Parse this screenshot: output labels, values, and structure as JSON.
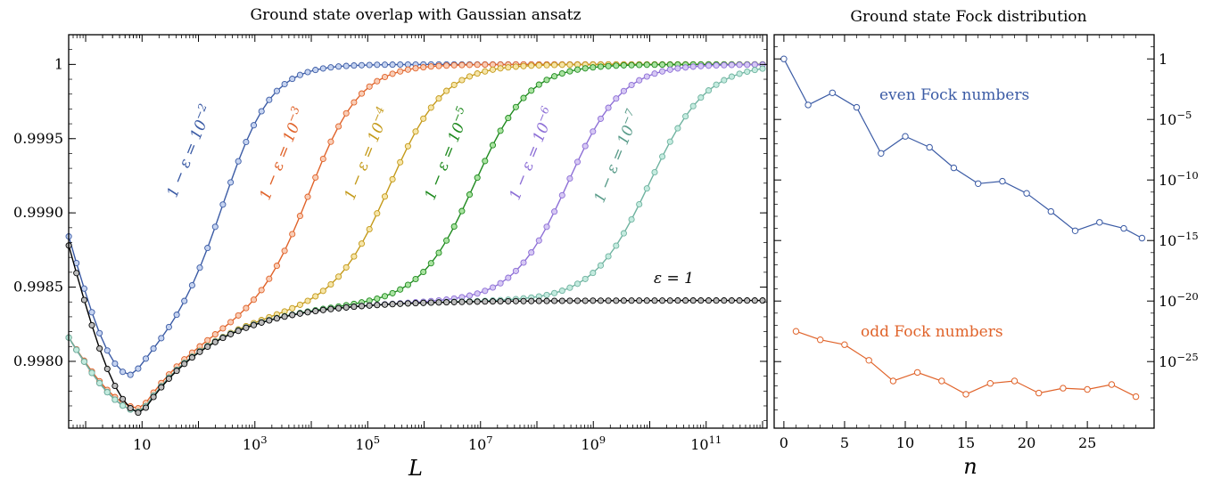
{
  "chart_data": [
    {
      "type": "line",
      "title": "Ground state overlap with Gaussian ansatz",
      "xlabel": "L",
      "ylabel": "",
      "x_scale": "log",
      "xlim": [
        0.5,
        1200000000000.0
      ],
      "ylim": [
        0.99755,
        1.0002
      ],
      "xtick_labels": [
        "10",
        "10^3",
        "10^5",
        "10^7",
        "10^9",
        "10^11"
      ],
      "ytick_labels": [
        "0.9980",
        "0.9985",
        "0.9990",
        "0.9995",
        "1"
      ],
      "ytick_values": [
        0.998,
        0.9985,
        0.999,
        0.9995,
        1.0
      ],
      "series": [
        {
          "name": "1 − ε = 10^−2",
          "color": "#3b5ba5",
          "fill": "#c5d3f0",
          "x0_exp": 0,
          "x1_exp": 4.3,
          "mid_exp": 2.5,
          "width": 0.42,
          "dip_y": 0.99787,
          "dip_exp": 0.85,
          "start_y": 0.99884
        },
        {
          "name": "1 − ε = 10^−3",
          "color": "#e0632a",
          "fill": "#f9cdb6",
          "x0_exp": 0.5,
          "x1_exp": 6.0,
          "mid_exp": 4.0,
          "width": 0.45,
          "dip_y": 0.99768,
          "dip_exp": 1.0,
          "start_y": 0.99816
        },
        {
          "name": "1 − ε = 10^−4",
          "color": "#c49a1a",
          "fill": "#f6e5a8",
          "x0_exp": 2.0,
          "x1_exp": 8.0,
          "mid_exp": 5.4,
          "width": 0.48,
          "dip_y": 0.99766,
          "dip_exp": 1.0,
          "start_y": 0.99816
        },
        {
          "name": "1 − ε = 10^−5",
          "color": "#1f8a1f",
          "fill": "#a9e3a0",
          "x0_exp": 4.0,
          "x1_exp": 9.0,
          "mid_exp": 6.9,
          "width": 0.48,
          "dip_y": 0.99766,
          "dip_exp": 1.0,
          "start_y": 0.99816
        },
        {
          "name": "1 − ε = 10^−6",
          "color": "#8d6fd6",
          "fill": "#d6c8f4",
          "x0_exp": 5.5,
          "x1_exp": 10.5,
          "mid_exp": 8.55,
          "width": 0.48,
          "dip_y": 0.99766,
          "dip_exp": 1.0,
          "start_y": 0.99816
        },
        {
          "name": "1 − ε = 10^−7",
          "color": "#6fb3a0",
          "fill": "#c4ebdf",
          "x0_exp": 7.0,
          "x1_exp": 12.0,
          "mid_exp": 10.0,
          "width": 0.5,
          "dip_y": 0.99766,
          "dip_exp": 1.0,
          "start_y": 0.99816
        },
        {
          "name": "ε = 1",
          "color": "#000000",
          "fill": "#bdbdbd",
          "x0_exp": -0.3,
          "x1_exp": 12.0,
          "plateau": 0.99841,
          "dip_y": 0.99765,
          "dip_exp": 1.0,
          "start_y": 0.99878
        }
      ],
      "curve_labels": [
        {
          "text": "1 − ε = 10",
          "sup": "−2",
          "color": "#3b5ba5"
        },
        {
          "text": "1 − ε = 10",
          "sup": "−3",
          "color": "#e0632a"
        },
        {
          "text": "1 − ε = 10",
          "sup": "−4",
          "color": "#c49a1a"
        },
        {
          "text": "1 − ε = 10",
          "sup": "−5",
          "color": "#1f8a1f"
        },
        {
          "text": "1 − ε = 10",
          "sup": "−6",
          "color": "#8d6fd6"
        },
        {
          "text": "1 − ε = 10",
          "sup": "−7",
          "color": "#5a9c8a"
        },
        {
          "text": "ε = 1",
          "sup": "",
          "color": "#000000"
        }
      ]
    },
    {
      "type": "line",
      "title": "Ground state Fock distribution",
      "xlabel": "n",
      "ylabel": "",
      "y_scale": "log",
      "xlim": [
        -0.8,
        30.5
      ],
      "ylim_log10": [
        -30.5,
        2
      ],
      "xtick_values": [
        0,
        5,
        10,
        15,
        20,
        25
      ],
      "xtick_labels": [
        "0",
        "5",
        "10",
        "15",
        "20",
        "25"
      ],
      "ytick_labels": [
        "1",
        "10^−5",
        "10^−10",
        "10^−15",
        "10^−20",
        "10^−25"
      ],
      "ytick_exps": [
        0,
        -5,
        -10,
        -15,
        -20,
        -25
      ],
      "series": [
        {
          "name": "even Fock numbers",
          "color": "#3b5ba5",
          "fill": "#c5d3f0",
          "x": [
            0,
            2,
            4,
            6,
            8,
            10,
            12,
            14,
            16,
            18,
            20,
            22,
            24,
            26,
            28,
            29.5
          ],
          "log10_y": [
            0.0,
            -3.8,
            -2.8,
            -4.0,
            -7.8,
            -6.4,
            -7.3,
            -9.0,
            -10.3,
            -10.1,
            -11.1,
            -12.6,
            -14.2,
            -13.5,
            -14.0,
            -14.8
          ]
        },
        {
          "name": "odd Fock numbers",
          "color": "#e0632a",
          "fill": "#f9cdb6",
          "x": [
            1,
            3,
            5,
            7,
            9,
            11,
            13,
            15,
            17,
            19,
            21,
            23,
            25,
            27,
            29
          ],
          "log10_y": [
            -22.5,
            -23.2,
            -23.6,
            -24.9,
            -26.6,
            -25.9,
            -26.6,
            -27.7,
            -26.8,
            -26.6,
            -27.6,
            -27.2,
            -27.3,
            -26.9,
            -27.9
          ]
        }
      ],
      "annotations": [
        "even Fock numbers",
        "odd Fock numbers"
      ]
    }
  ]
}
